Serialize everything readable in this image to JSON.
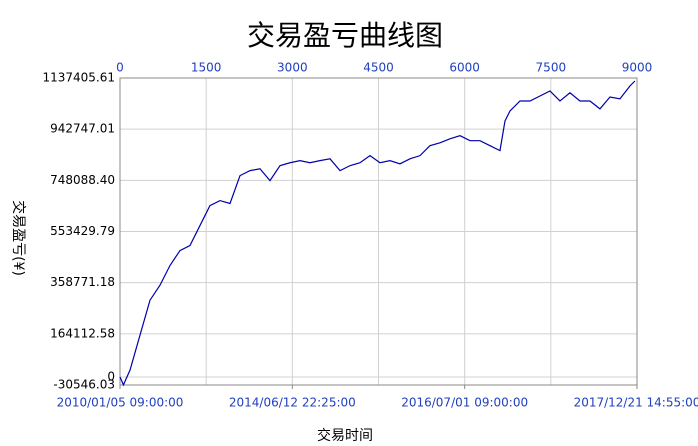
{
  "chart_data": {
    "type": "line",
    "title": "交易盈亏曲线图",
    "y_label": "交易盈亏(¥)",
    "x_label": "交易时间",
    "x": [
      0,
      60,
      174,
      348,
      522,
      696,
      870,
      1044,
      1218,
      1392,
      1566,
      1741,
      1915,
      2089,
      2263,
      2437,
      2611,
      2785,
      2959,
      3133,
      3307,
      3481,
      3656,
      3830,
      4004,
      4178,
      4352,
      4526,
      4700,
      4874,
      5048,
      5222,
      5396,
      5570,
      5744,
      5919,
      6093,
      6267,
      6441,
      6615,
      6702,
      6789,
      6963,
      7137,
      7311,
      7485,
      7659,
      7833,
      8007,
      8181,
      8355,
      8529,
      8703,
      8877,
      8964
    ],
    "series": [
      {
        "name": "交易盈亏",
        "color": "#0000aa",
        "values": [
          0,
          -30000,
          26000,
          159000,
          292000,
          349000,
          424000,
          481000,
          500000,
          576000,
          652000,
          671000,
          660000,
          766000,
          785000,
          792000,
          747000,
          804000,
          815000,
          823000,
          815000,
          823000,
          830000,
          785000,
          804000,
          815000,
          842000,
          815000,
          823000,
          811000,
          830000,
          842000,
          880000,
          891000,
          906000,
          918000,
          899000,
          899000,
          880000,
          861000,
          974000,
          1012000,
          1050000,
          1050000,
          1069000,
          1088000,
          1050000,
          1081000,
          1050000,
          1050000,
          1020000,
          1065000,
          1058000,
          1107000,
          1126000
        ]
      }
    ],
    "xlim": [
      0,
      9000
    ],
    "xticks": [
      0,
      1500,
      3000,
      4500,
      6000,
      7500,
      9000
    ],
    "xticks_bottom": [
      {
        "value": 0,
        "label": "2010/01/05 09:00:00"
      },
      {
        "value": 3000,
        "label": "2014/06/12 22:25:00"
      },
      {
        "value": 6000,
        "label": "2016/07/01 09:00:00"
      },
      {
        "value": 9000,
        "label": "2017/12/21 14:55:00"
      }
    ],
    "ylim": [
      -30546.03,
      1137405.61
    ],
    "yticks": [
      -30546.03,
      0,
      164112.58,
      358771.18,
      553429.79,
      {
        "value": 748088.4,
        "label": "748088.40"
      },
      942747.01,
      1137405.61
    ],
    "grid": true
  }
}
